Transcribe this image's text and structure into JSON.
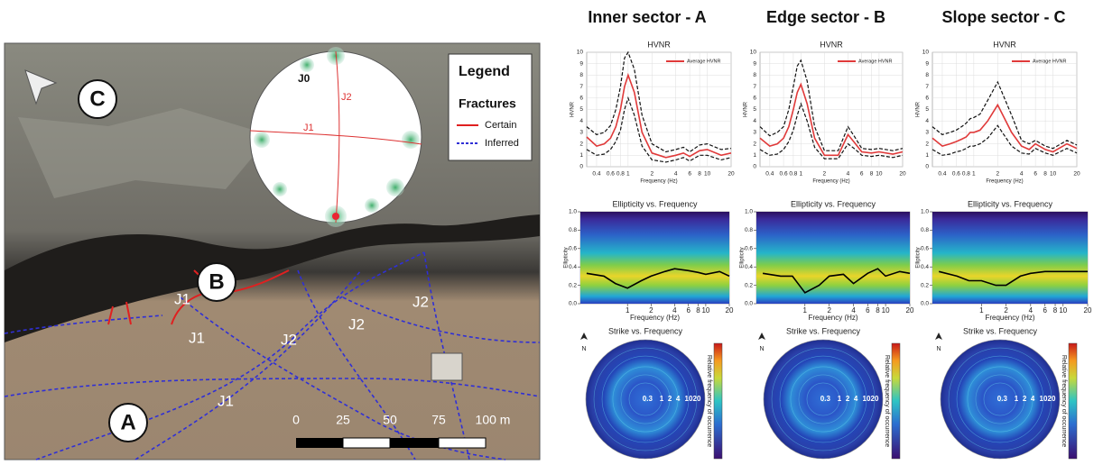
{
  "columns": [
    "Inner sector - A",
    "Edge sector - B",
    "Slope sector - C"
  ],
  "map": {
    "site_labels": [
      "A",
      "B",
      "C"
    ],
    "joint_labels": [
      "J1",
      "J1",
      "J2",
      "J2",
      "J2",
      "J1"
    ],
    "stereonet_labels": [
      "J0",
      "J2",
      "J1"
    ],
    "legend": {
      "title": "Legend",
      "subtitle": "Fractures",
      "items": [
        "Certain",
        "Inferred"
      ]
    },
    "scale_labels": [
      "0",
      "25",
      "50",
      "75",
      "100 m"
    ]
  },
  "chart_data": [
    {
      "type": "line",
      "title": "HVNR",
      "xlabel": "Frequency (Hz)",
      "ylabel": "HVNR",
      "log_x": true,
      "grid": true,
      "xlim": [
        0.3,
        20
      ],
      "xticks": [
        0.4,
        0.6,
        0.8,
        1,
        2,
        4,
        6,
        8,
        10,
        20
      ],
      "ylim": [
        0,
        10
      ],
      "yticks": [
        0,
        1,
        2,
        3,
        4,
        5,
        6,
        7,
        8,
        9,
        10
      ],
      "x": [
        0.3,
        0.4,
        0.5,
        0.6,
        0.7,
        0.8,
        0.9,
        1,
        1.2,
        1.5,
        2,
        3,
        4,
        5,
        6,
        8,
        10,
        15,
        20
      ],
      "series": [
        {
          "name": "Average HVNR",
          "color": "#e03a3a",
          "values": [
            2.6,
            1.8,
            2.0,
            2.5,
            3.5,
            5,
            7,
            8,
            6.5,
            3,
            1.2,
            0.8,
            1.0,
            1.2,
            0.9,
            1.4,
            1.5,
            1.0,
            1.2
          ]
        },
        {
          "color": "#111111",
          "dash": true,
          "values": [
            3.5,
            2.8,
            3,
            3.6,
            5,
            7,
            9.5,
            10,
            8.5,
            4.5,
            2,
            1.3,
            1.5,
            1.7,
            1.3,
            1.9,
            2,
            1.5,
            1.6
          ]
        },
        {
          "color": "#111111",
          "dash": true,
          "values": [
            1.5,
            1,
            1.1,
            1.5,
            2.2,
            3.2,
            5,
            6,
            4.5,
            1.8,
            0.6,
            0.4,
            0.6,
            0.8,
            0.5,
            1,
            1,
            0.6,
            0.8
          ]
        }
      ]
    },
    {
      "type": "line",
      "title": "HVNR",
      "xlabel": "Frequency (Hz)",
      "ylabel": "HVNR",
      "log_x": true,
      "grid": true,
      "xlim": [
        0.3,
        20
      ],
      "xticks": [
        0.4,
        0.6,
        0.8,
        1,
        2,
        4,
        6,
        8,
        10,
        20
      ],
      "ylim": [
        0,
        10
      ],
      "yticks": [
        0,
        1,
        2,
        3,
        4,
        5,
        6,
        7,
        8,
        9,
        10
      ],
      "x": [
        0.3,
        0.4,
        0.5,
        0.6,
        0.7,
        0.8,
        0.9,
        1,
        1.2,
        1.5,
        2,
        3,
        4,
        5,
        6,
        8,
        10,
        15,
        20
      ],
      "series": [
        {
          "name": "Average HVNR",
          "color": "#e03a3a",
          "values": [
            2.5,
            1.8,
            2,
            2.5,
            3.5,
            5,
            6.5,
            7.2,
            5.5,
            2.5,
            1,
            1,
            2.8,
            2,
            1.3,
            1.2,
            1.3,
            1.1,
            1.3
          ]
        },
        {
          "color": "#111111",
          "dash": true,
          "values": [
            3.5,
            2.7,
            3,
            3.5,
            5,
            7,
            8.8,
            9.3,
            7.5,
            3.5,
            1.4,
            1.4,
            3.5,
            2.5,
            1.6,
            1.5,
            1.6,
            1.4,
            1.6
          ]
        },
        {
          "color": "#111111",
          "dash": true,
          "values": [
            1.5,
            1,
            1.1,
            1.5,
            2.2,
            3.2,
            4.5,
            5.5,
            4,
            1.7,
            0.7,
            0.7,
            2,
            1.5,
            1,
            0.9,
            1,
            0.8,
            1
          ]
        }
      ]
    },
    {
      "type": "line",
      "title": "HVNR",
      "xlabel": "Frequency (Hz)",
      "ylabel": "HVNR",
      "log_x": true,
      "grid": true,
      "xlim": [
        0.3,
        20
      ],
      "xticks": [
        0.4,
        0.6,
        0.8,
        1,
        2,
        4,
        6,
        8,
        10,
        20
      ],
      "ylim": [
        0,
        10
      ],
      "yticks": [
        0,
        1,
        2,
        3,
        4,
        5,
        6,
        7,
        8,
        9,
        10
      ],
      "x": [
        0.3,
        0.4,
        0.5,
        0.6,
        0.7,
        0.8,
        0.9,
        1,
        1.2,
        1.5,
        2,
        3,
        4,
        5,
        6,
        8,
        10,
        15,
        20
      ],
      "series": [
        {
          "name": "Average HVNR",
          "color": "#e03a3a",
          "values": [
            2.5,
            1.8,
            2,
            2.2,
            2.4,
            2.6,
            3,
            3,
            3.2,
            4,
            5.4,
            3,
            1.8,
            1.5,
            2,
            1.5,
            1.3,
            2,
            1.6
          ]
        },
        {
          "color": "#111111",
          "dash": true,
          "values": [
            3.5,
            2.8,
            3,
            3.2,
            3.5,
            3.8,
            4.2,
            4.3,
            4.6,
            5.8,
            7.4,
            4.5,
            2.3,
            2,
            2.3,
            1.8,
            1.6,
            2.3,
            1.9
          ]
        },
        {
          "color": "#111111",
          "dash": true,
          "values": [
            1.5,
            1,
            1.1,
            1.3,
            1.4,
            1.6,
            1.8,
            1.8,
            2,
            2.5,
            3.6,
            1.8,
            1.2,
            1.1,
            1.6,
            1.2,
            1,
            1.6,
            1.2
          ]
        }
      ]
    },
    {
      "type": "heatmap",
      "title": "Ellipticity vs. Frequency",
      "xlabel": "Frequency (Hz)",
      "ylabel": "Ellipticity",
      "log_x": true,
      "xlim": [
        0.25,
        20
      ],
      "xticks": [
        1,
        2,
        4,
        6,
        8,
        10,
        20
      ],
      "ylim": [
        0,
        1
      ],
      "yticks": [
        {
          "value": 0,
          "label": "0.0"
        },
        0.2,
        0.4,
        0.6,
        0.8,
        {
          "value": 1,
          "label": "1.0"
        }
      ],
      "x": [
        0.3,
        0.5,
        0.7,
        1,
        1.5,
        2,
        3,
        4,
        6,
        8,
        10,
        15,
        20
      ],
      "series": [
        {
          "color": "#000000",
          "values": [
            0.33,
            0.3,
            0.22,
            0.17,
            0.25,
            0.3,
            0.35,
            0.38,
            0.36,
            0.34,
            0.32,
            0.35,
            0.3
          ]
        }
      ]
    },
    {
      "type": "heatmap",
      "title": "Ellipticity vs. Frequency",
      "xlabel": "Frequency (Hz)",
      "ylabel": "Ellipticity",
      "log_x": true,
      "xlim": [
        0.25,
        20
      ],
      "xticks": [
        1,
        2,
        4,
        6,
        8,
        10,
        20
      ],
      "ylim": [
        0,
        1
      ],
      "yticks": [
        {
          "value": 0,
          "label": "0.0"
        },
        0.2,
        0.4,
        0.6,
        0.8,
        {
          "value": 1,
          "label": "1.0"
        }
      ],
      "x": [
        0.3,
        0.5,
        0.7,
        1,
        1.5,
        2,
        3,
        4,
        6,
        8,
        10,
        15,
        20
      ],
      "series": [
        {
          "color": "#000000",
          "values": [
            0.33,
            0.3,
            0.3,
            0.12,
            0.2,
            0.3,
            0.32,
            0.22,
            0.33,
            0.38,
            0.3,
            0.35,
            0.33
          ]
        }
      ]
    },
    {
      "type": "heatmap",
      "title": "Ellipticity vs. Frequency",
      "xlabel": "Frequency (Hz)",
      "ylabel": "Ellipticity",
      "log_x": true,
      "xlim": [
        0.25,
        20
      ],
      "xticks": [
        1,
        2,
        4,
        6,
        8,
        10,
        20
      ],
      "ylim": [
        0,
        1
      ],
      "yticks": [
        {
          "value": 0,
          "label": "0.0"
        },
        0.2,
        0.4,
        0.6,
        0.8,
        {
          "value": 1,
          "label": "1.0"
        }
      ],
      "x": [
        0.3,
        0.5,
        0.7,
        1,
        1.5,
        2,
        3,
        4,
        6,
        8,
        10,
        15,
        20
      ],
      "series": [
        {
          "color": "#000000",
          "values": [
            0.35,
            0.3,
            0.25,
            0.25,
            0.2,
            0.2,
            0.3,
            0.33,
            0.35,
            0.35,
            0.35,
            0.35,
            0.35
          ]
        }
      ]
    },
    {
      "type": "polar",
      "title": "Strike vs. Frequency",
      "north": "N",
      "colorbar_label": "Relative frequency of occurrence",
      "rlim": [
        0.25,
        40
      ],
      "rticks": [
        0.3,
        1,
        2,
        4,
        10,
        20
      ]
    },
    {
      "type": "polar",
      "title": "Strike vs. Frequency",
      "north": "N",
      "colorbar_label": "Relative frequency of occurrence",
      "rlim": [
        0.25,
        40
      ],
      "rticks": [
        0.3,
        1,
        2,
        4,
        10,
        20
      ]
    },
    {
      "type": "polar",
      "title": "Strike vs. Frequency",
      "north": "N",
      "colorbar_label": "Relative frequency of occurrence",
      "rlim": [
        0.25,
        40
      ],
      "rticks": [
        0.3,
        1,
        2,
        4,
        10,
        20
      ]
    }
  ]
}
